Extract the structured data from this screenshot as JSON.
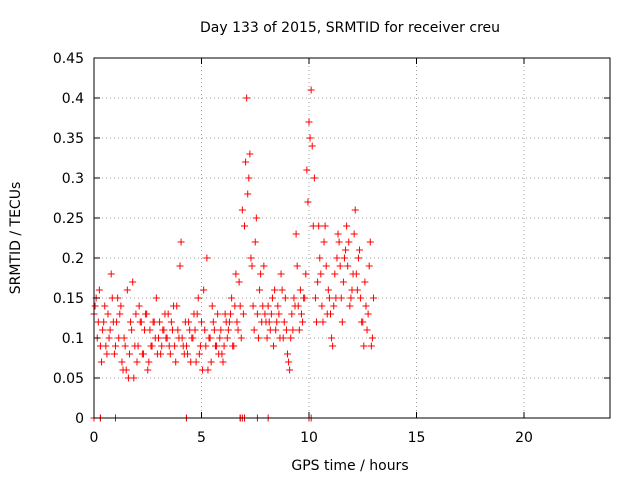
{
  "chart_data": {
    "type": "scatter",
    "title": "Day 133 of 2015, SRMTID for receiver creu",
    "xlabel": "GPS time / hours",
    "ylabel": "SRMTID / TECUs",
    "xlim": [
      0,
      24
    ],
    "ylim": [
      0,
      0.45
    ],
    "xticks": [
      0,
      5,
      10,
      15,
      20
    ],
    "xtick_labels": [
      "0",
      "5",
      "10",
      "15",
      "20"
    ],
    "yticks": [
      0,
      0.05,
      0.1,
      0.15,
      0.2,
      0.25,
      0.3,
      0.35,
      0.4,
      0.45
    ],
    "ytick_labels": [
      "0",
      "0.05",
      "0.1",
      "0.15",
      "0.2",
      "0.25",
      "0.3",
      "0.35",
      "0.4",
      "0.45"
    ],
    "grid": true,
    "marker": "+",
    "marker_color": "#ff0000",
    "series": [
      {
        "name": "SRMTID",
        "x": [
          0.0,
          0.1,
          0.2,
          0.3,
          0.4,
          0.5,
          0.6,
          0.7,
          0.8,
          0.9,
          1.0,
          1.1,
          1.2,
          1.3,
          1.4,
          1.5,
          1.6,
          1.7,
          1.8,
          1.9,
          2.0,
          2.1,
          2.2,
          2.3,
          2.4,
          2.5,
          2.6,
          2.7,
          2.8,
          2.9,
          3.0,
          3.1,
          3.2,
          3.3,
          3.4,
          3.5,
          3.6,
          3.7,
          3.8,
          3.9,
          4.0,
          4.1,
          4.2,
          4.3,
          4.4,
          4.5,
          4.6,
          4.7,
          4.8,
          4.9,
          5.0,
          5.1,
          5.2,
          5.3,
          5.4,
          5.5,
          5.6,
          5.7,
          5.8,
          5.9,
          6.0,
          6.1,
          6.2,
          6.3,
          6.4,
          6.5,
          6.6,
          6.7,
          6.8,
          6.9,
          7.0,
          7.1,
          7.2,
          7.3,
          7.4,
          7.5,
          7.6,
          7.7,
          7.8,
          7.9,
          8.0,
          8.1,
          8.2,
          8.3,
          8.4,
          8.5,
          8.6,
          8.7,
          8.8,
          8.9,
          9.0,
          9.1,
          9.2,
          9.3,
          9.4,
          9.5,
          9.6,
          9.7,
          9.8,
          9.9,
          10.0,
          10.1,
          10.2,
          10.3,
          10.4,
          10.5,
          10.6,
          10.7,
          10.8,
          10.9,
          11.0,
          11.1,
          11.2,
          11.3,
          11.4,
          11.5,
          11.6,
          11.7,
          11.8,
          11.9,
          12.0,
          12.1,
          12.2,
          12.3,
          12.4,
          12.5,
          12.6,
          12.7,
          12.8,
          12.9,
          13.0,
          0.05,
          0.15,
          0.25,
          0.35,
          0.45,
          0.55,
          0.65,
          0.75,
          0.85,
          0.95,
          1.05,
          1.15,
          1.25,
          1.35,
          1.45,
          1.55,
          1.65,
          1.75,
          1.85,
          1.95,
          2.05,
          2.15,
          2.25,
          2.35,
          2.45,
          2.55,
          2.65,
          2.75,
          2.85,
          2.95,
          3.05,
          3.15,
          3.25,
          3.35,
          3.45,
          3.55,
          3.65,
          3.75,
          3.85,
          3.95,
          4.05,
          4.15,
          4.25,
          4.35,
          4.45,
          4.55,
          4.65,
          4.75,
          4.85,
          4.95,
          5.05,
          5.15,
          5.25,
          5.35,
          5.45,
          5.55,
          5.65,
          5.75,
          5.85,
          5.95,
          6.05,
          6.15,
          6.25,
          6.35,
          6.45,
          6.55,
          6.65,
          6.75,
          6.85,
          6.95,
          7.05,
          7.15,
          7.25,
          7.35,
          7.45,
          7.55,
          7.65,
          7.75,
          7.85,
          7.95,
          8.05,
          8.15,
          8.25,
          8.35,
          8.45,
          8.55,
          8.65,
          8.75,
          8.85,
          8.95,
          9.05,
          9.15,
          9.25,
          9.35,
          9.45,
          9.55,
          9.65,
          9.75,
          9.85,
          9.95,
          10.05,
          10.15,
          10.25,
          10.35,
          10.45,
          10.55,
          10.65,
          10.75,
          10.85,
          10.95,
          11.05,
          11.15,
          11.25,
          11.35,
          11.45,
          11.55,
          11.65,
          11.75,
          11.85,
          11.95,
          12.05,
          12.15,
          12.25,
          12.35,
          12.45,
          12.55,
          12.65,
          12.75,
          12.85,
          12.95,
          0.0,
          0.0,
          0.0,
          0.3,
          0.3,
          0.3,
          0.3,
          1.0,
          1.0,
          4.3,
          4.3,
          6.8,
          6.8,
          6.9,
          7.0,
          7.0,
          7.6,
          8.1,
          10.0,
          10.0,
          10.1
        ],
        "y": [
          0.13,
          0.15,
          0.12,
          0.09,
          0.11,
          0.14,
          0.08,
          0.1,
          0.18,
          0.12,
          0.09,
          0.15,
          0.13,
          0.07,
          0.1,
          0.06,
          0.05,
          0.12,
          0.17,
          0.09,
          0.07,
          0.14,
          0.12,
          0.08,
          0.13,
          0.06,
          0.11,
          0.09,
          0.12,
          0.15,
          0.1,
          0.08,
          0.11,
          0.13,
          0.1,
          0.09,
          0.12,
          0.14,
          0.07,
          0.11,
          0.19,
          0.1,
          0.08,
          0.09,
          0.12,
          0.07,
          0.1,
          0.11,
          0.13,
          0.08,
          0.12,
          0.16,
          0.09,
          0.06,
          0.1,
          0.14,
          0.11,
          0.09,
          0.08,
          0.11,
          0.07,
          0.13,
          0.1,
          0.12,
          0.15,
          0.09,
          0.18,
          0.11,
          0.14,
          0.26,
          0.24,
          0.4,
          0.3,
          0.2,
          0.14,
          0.22,
          0.13,
          0.16,
          0.12,
          0.19,
          0.12,
          0.14,
          0.11,
          0.15,
          0.16,
          0.12,
          0.13,
          0.18,
          0.1,
          0.15,
          0.08,
          0.06,
          0.13,
          0.15,
          0.23,
          0.14,
          0.16,
          0.12,
          0.15,
          0.31,
          0.37,
          0.41,
          0.24,
          0.15,
          0.17,
          0.2,
          0.14,
          0.22,
          0.19,
          0.16,
          0.13,
          0.09,
          0.18,
          0.2,
          0.22,
          0.15,
          0.17,
          0.21,
          0.19,
          0.14,
          0.16,
          0.23,
          0.18,
          0.2,
          0.15,
          0.12,
          0.17,
          0.11,
          0.19,
          0.09,
          0.15,
          0.14,
          0.1,
          0.16,
          0.07,
          0.12,
          0.09,
          0.13,
          0.11,
          0.15,
          0.08,
          0.12,
          0.1,
          0.14,
          0.06,
          0.09,
          0.16,
          0.08,
          0.11,
          0.05,
          0.13,
          0.09,
          0.12,
          0.08,
          0.11,
          0.13,
          0.07,
          0.09,
          0.12,
          0.1,
          0.08,
          0.12,
          0.09,
          0.11,
          0.1,
          0.13,
          0.08,
          0.11,
          0.09,
          0.14,
          0.1,
          0.22,
          0.09,
          0.12,
          0.08,
          0.11,
          0.1,
          0.13,
          0.07,
          0.15,
          0.09,
          0.06,
          0.11,
          0.2,
          0.1,
          0.07,
          0.12,
          0.09,
          0.13,
          0.1,
          0.08,
          0.09,
          0.12,
          0.11,
          0.13,
          0.09,
          0.14,
          0.12,
          0.17,
          0.1,
          0.13,
          0.32,
          0.28,
          0.33,
          0.19,
          0.11,
          0.25,
          0.1,
          0.18,
          0.14,
          0.13,
          0.1,
          0.12,
          0.13,
          0.09,
          0.11,
          0.14,
          0.1,
          0.16,
          0.12,
          0.11,
          0.07,
          0.1,
          0.11,
          0.14,
          0.19,
          0.11,
          0.13,
          0.15,
          0.18,
          0.27,
          0.35,
          0.34,
          0.3,
          0.12,
          0.24,
          0.18,
          0.12,
          0.24,
          0.13,
          0.15,
          0.1,
          0.14,
          0.15,
          0.23,
          0.19,
          0.12,
          0.2,
          0.24,
          0.22,
          0.15,
          0.18,
          0.26,
          0.16,
          0.21,
          0.12,
          0.09,
          0.14,
          0.13,
          0.22,
          0.1,
          0.0,
          0.0,
          0.0,
          0.0,
          0.0,
          0.0,
          0.0,
          0.0,
          0.0,
          0.0,
          0.0,
          0.0,
          0.0,
          0.0,
          0.0,
          0.0,
          0.0,
          0.0,
          0.0,
          0.0,
          0.0
        ]
      }
    ]
  }
}
